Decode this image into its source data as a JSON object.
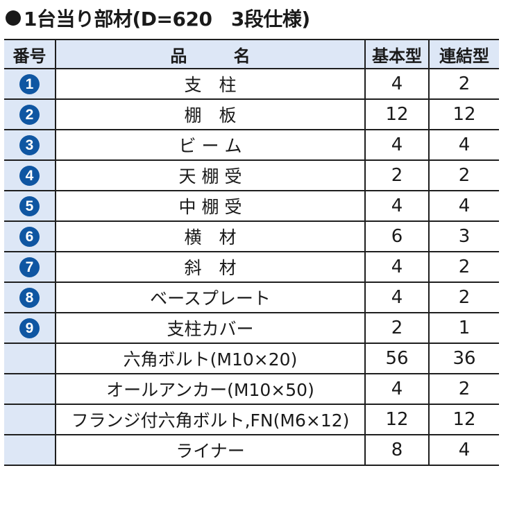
{
  "title": "1台当り部材(D=620　3段仕様)",
  "colors": {
    "header_bg": "#dde7f6",
    "badge": "#0f56a2",
    "border": "#1e1e1e"
  },
  "table": {
    "headers": {
      "number": "番号",
      "name": "品　名",
      "basic": "基本型",
      "linked": "連結型"
    },
    "rows": [
      {
        "badge": "1",
        "name": "支　柱",
        "basic": "4",
        "linked": "2"
      },
      {
        "badge": "2",
        "name": "棚　板",
        "basic": "12",
        "linked": "12"
      },
      {
        "badge": "3",
        "name": "ビ ー ム",
        "basic": "4",
        "linked": "4"
      },
      {
        "badge": "4",
        "name": "天 棚 受",
        "basic": "2",
        "linked": "2"
      },
      {
        "badge": "5",
        "name": "中 棚 受",
        "basic": "4",
        "linked": "4"
      },
      {
        "badge": "6",
        "name": "横　材",
        "basic": "6",
        "linked": "3"
      },
      {
        "badge": "7",
        "name": "斜　材",
        "basic": "4",
        "linked": "2"
      },
      {
        "badge": "8",
        "name": "ベースプレート",
        "basic": "4",
        "linked": "2"
      },
      {
        "badge": "9",
        "name": "支柱カバー",
        "basic": "2",
        "linked": "1"
      },
      {
        "badge": "",
        "name": "六角ボルト(M10×20)",
        "basic": "56",
        "linked": "36"
      },
      {
        "badge": "",
        "name": "オールアンカー(M10×50)",
        "basic": "4",
        "linked": "2"
      },
      {
        "badge": "",
        "name": "フランジ付六角ボルト,FN(M6×12)",
        "basic": "12",
        "linked": "12"
      },
      {
        "badge": "",
        "name": "ライナー",
        "basic": "8",
        "linked": "4"
      }
    ]
  }
}
